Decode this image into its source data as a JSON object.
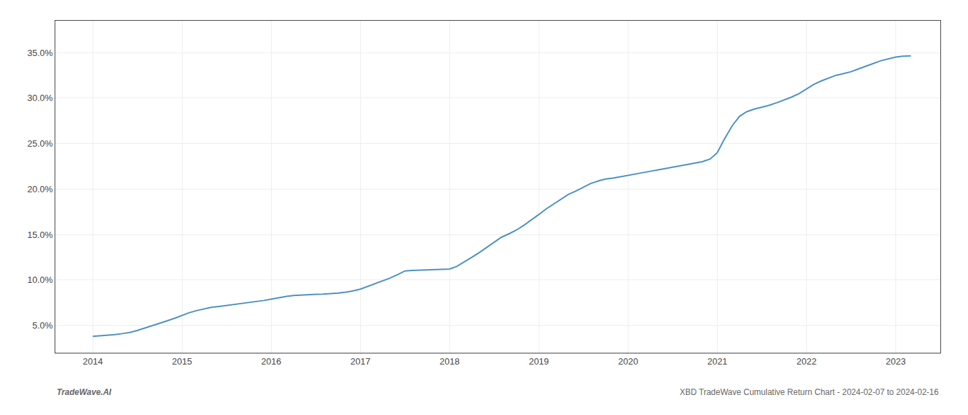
{
  "chart_data": {
    "type": "line",
    "x": [
      2014.0,
      2014.08,
      2014.17,
      2014.25,
      2014.33,
      2014.42,
      2014.5,
      2014.58,
      2014.67,
      2014.75,
      2014.83,
      2014.92,
      2015.0,
      2015.08,
      2015.17,
      2015.25,
      2015.33,
      2015.42,
      2015.5,
      2015.58,
      2015.67,
      2015.75,
      2015.83,
      2015.92,
      2016.0,
      2016.08,
      2016.17,
      2016.25,
      2016.33,
      2016.42,
      2016.5,
      2016.58,
      2016.67,
      2016.75,
      2016.83,
      2016.92,
      2017.0,
      2017.08,
      2017.17,
      2017.25,
      2017.33,
      2017.42,
      2017.5,
      2017.58,
      2017.67,
      2017.75,
      2017.83,
      2017.92,
      2018.0,
      2018.08,
      2018.17,
      2018.25,
      2018.33,
      2018.42,
      2018.5,
      2018.58,
      2018.67,
      2018.75,
      2018.83,
      2018.92,
      2019.0,
      2019.08,
      2019.17,
      2019.25,
      2019.33,
      2019.42,
      2019.5,
      2019.58,
      2019.67,
      2019.75,
      2019.83,
      2019.92,
      2020.0,
      2020.08,
      2020.17,
      2020.25,
      2020.33,
      2020.42,
      2020.5,
      2020.58,
      2020.67,
      2020.75,
      2020.83,
      2020.92,
      2021.0,
      2021.08,
      2021.17,
      2021.25,
      2021.33,
      2021.42,
      2021.5,
      2021.58,
      2021.67,
      2021.75,
      2021.83,
      2021.92,
      2022.0,
      2022.08,
      2022.17,
      2022.25,
      2022.33,
      2022.42,
      2022.5,
      2022.58,
      2022.67,
      2022.75,
      2022.83,
      2022.92,
      2023.0,
      2023.08,
      2023.17
    ],
    "values": [
      3.8,
      3.85,
      3.92,
      4.0,
      4.1,
      4.25,
      4.45,
      4.7,
      4.95,
      5.2,
      5.5,
      5.8,
      6.1,
      6.4,
      6.65,
      6.85,
      7.0,
      7.1,
      7.2,
      7.3,
      7.4,
      7.5,
      7.6,
      7.75,
      7.9,
      8.05,
      8.2,
      8.3,
      8.35,
      8.4,
      8.42,
      8.45,
      8.5,
      8.55,
      8.65,
      8.8,
      9.0,
      9.3,
      9.6,
      9.9,
      10.2,
      10.6,
      11.0,
      11.05,
      11.08,
      11.1,
      11.12,
      11.15,
      11.2,
      11.5,
      12.0,
      12.5,
      13.0,
      13.6,
      14.2,
      14.7,
      15.1,
      15.5,
      16.0,
      16.6,
      17.2,
      17.8,
      18.4,
      18.9,
      19.4,
      19.8,
      20.2,
      20.6,
      20.9,
      21.1,
      21.2,
      21.35,
      21.5,
      21.65,
      21.8,
      21.95,
      22.1,
      22.25,
      22.4,
      22.55,
      22.7,
      22.85,
      23.0,
      23.3,
      24.0,
      25.5,
      27.0,
      28.0,
      28.5,
      28.8,
      29.0,
      29.2,
      29.5,
      29.8,
      30.1,
      30.5,
      31.0,
      31.5,
      31.9,
      32.2,
      32.5,
      32.7,
      32.9,
      33.2,
      33.5,
      33.8,
      34.1,
      34.3,
      34.5,
      34.6,
      34.65
    ],
    "color": "#4a90c4",
    "xlim": [
      2013.58,
      2023.5
    ],
    "ylim": [
      2.0,
      38.5
    ],
    "xticks": [
      2014,
      2015,
      2016,
      2017,
      2018,
      2019,
      2020,
      2021,
      2022,
      2023
    ],
    "yticks": [
      {
        "value": 5.0,
        "label": "5.0%"
      },
      {
        "value": 10.0,
        "label": "10.0%"
      },
      {
        "value": 15.0,
        "label": "15.0%"
      },
      {
        "value": 20.0,
        "label": "20.0%"
      },
      {
        "value": 25.0,
        "label": "25.0%"
      },
      {
        "value": 30.0,
        "label": "30.0%"
      },
      {
        "value": 35.0,
        "label": "35.0%"
      }
    ],
    "grid": true,
    "annotations": [
      "TradeWave.AI",
      "XBD TradeWave Cumulative Return Chart - 2024-02-07 to 2024-02-16"
    ]
  }
}
